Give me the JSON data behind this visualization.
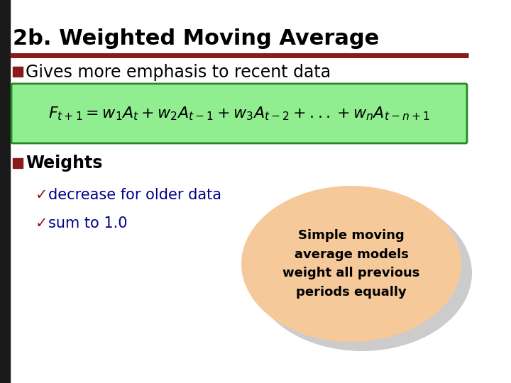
{
  "title": "2b. Weighted Moving Average",
  "title_fontsize": 22,
  "title_color": "#000000",
  "underline_color": "#8B1A1A",
  "bg_color": "#FFFFFF",
  "bullet_color": "#8B1A1A",
  "bullet1_text": "Gives more emphasis to recent data",
  "bullet1_fontsize": 17,
  "formula_box_color": "#90EE90",
  "formula_box_edge": "#228B22",
  "formula": "$F_{t+1} = w_1A_t + w_2A_{t-1} + w_3A_{t-2} + ...+ w_nA_{t-n+1}$",
  "formula_fontsize": 16,
  "bullet2_text": "Weights",
  "bullet2_fontsize": 17,
  "check_color": "#8B1A1A",
  "text_color_blue": "#00008B",
  "sub_bullet1": "decrease for older data",
  "sub_bullet2": "sum to 1.0",
  "sub_fontsize": 15,
  "ellipse_face": "#F5C99A",
  "ellipse_shadow": "#AAAAAA",
  "ellipse_text": "Simple moving\naverage models\nweight all previous\nperiods equally",
  "ellipse_fontsize": 13,
  "left_black_bar_color": "#1A1A1A"
}
